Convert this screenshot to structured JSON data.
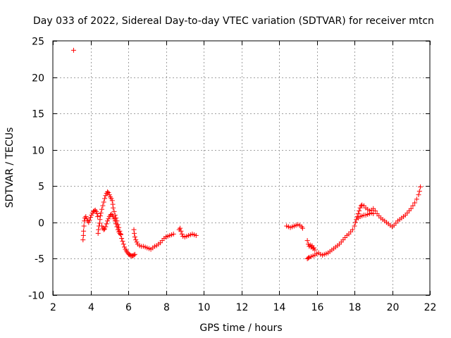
{
  "chart_data": {
    "type": "scatter",
    "title": "Day 033 of 2022, Sidereal Day-to-day VTEC variation (SDTVAR) for receiver mtcn",
    "xlabel": "GPS time / hours",
    "ylabel": "SDTVAR / TECUs",
    "xlim": [
      2,
      22
    ],
    "ylim": [
      -10,
      25
    ],
    "xticks": [
      2,
      4,
      6,
      8,
      10,
      12,
      14,
      16,
      18,
      20,
      22
    ],
    "yticks": [
      -10,
      -5,
      0,
      5,
      10,
      15,
      20,
      25
    ],
    "grid": true,
    "marker": "+",
    "color": "#ff0000",
    "series": [
      {
        "name": "SDTVAR",
        "points": [
          [
            3.1,
            23.7
          ],
          [
            3.6,
            -2.4
          ],
          [
            3.62,
            -1.8
          ],
          [
            3.63,
            -1.2
          ],
          [
            3.65,
            -0.5
          ],
          [
            3.67,
            0.2
          ],
          [
            3.7,
            0.6
          ],
          [
            3.75,
            0.8
          ],
          [
            3.8,
            0.5
          ],
          [
            3.85,
            0.2
          ],
          [
            3.9,
            0.0
          ],
          [
            3.95,
            0.3
          ],
          [
            4.0,
            0.7
          ],
          [
            4.05,
            1.0
          ],
          [
            4.1,
            1.3
          ],
          [
            4.15,
            1.5
          ],
          [
            4.2,
            1.6
          ],
          [
            4.25,
            1.7
          ],
          [
            4.3,
            1.5
          ],
          [
            4.35,
            1.2
          ],
          [
            4.38,
            0.8
          ],
          [
            4.4,
            -1.5
          ],
          [
            4.42,
            -1.0
          ],
          [
            4.45,
            -0.5
          ],
          [
            4.48,
            -0.1
          ],
          [
            4.5,
            0.4
          ],
          [
            4.52,
            0.9
          ],
          [
            4.55,
            1.3
          ],
          [
            4.6,
            1.8
          ],
          [
            4.65,
            2.3
          ],
          [
            4.7,
            2.8
          ],
          [
            4.75,
            3.3
          ],
          [
            4.8,
            3.7
          ],
          [
            4.85,
            4.0
          ],
          [
            4.9,
            4.2
          ],
          [
            4.95,
            4.1
          ],
          [
            5.0,
            3.8
          ],
          [
            5.05,
            3.5
          ],
          [
            5.1,
            3.3
          ],
          [
            5.15,
            3.0
          ],
          [
            5.18,
            2.5
          ],
          [
            5.2,
            2.0
          ],
          [
            5.25,
            1.5
          ],
          [
            5.3,
            1.0
          ],
          [
            5.35,
            0.6
          ],
          [
            5.4,
            0.2
          ],
          [
            5.45,
            -0.3
          ],
          [
            5.5,
            -0.7
          ],
          [
            5.55,
            -1.2
          ],
          [
            5.6,
            -1.7
          ],
          [
            5.65,
            -2.2
          ],
          [
            5.7,
            -2.6
          ],
          [
            5.75,
            -3.0
          ],
          [
            5.8,
            -3.4
          ],
          [
            5.85,
            -3.7
          ],
          [
            5.9,
            -3.9
          ],
          [
            5.95,
            -4.1
          ],
          [
            6.0,
            -4.3
          ],
          [
            6.05,
            -4.4
          ],
          [
            6.1,
            -4.5
          ],
          [
            6.15,
            -4.6
          ],
          [
            6.2,
            -4.6
          ],
          [
            6.25,
            -4.6
          ],
          [
            6.3,
            -4.5
          ],
          [
            6.35,
            -4.4
          ],
          [
            4.6,
            -0.5
          ],
          [
            4.65,
            -0.8
          ],
          [
            4.7,
            -1.0
          ],
          [
            4.75,
            -0.9
          ],
          [
            4.8,
            -0.6
          ],
          [
            4.85,
            -0.2
          ],
          [
            4.9,
            0.2
          ],
          [
            4.95,
            0.5
          ],
          [
            5.0,
            0.8
          ],
          [
            5.05,
            1.0
          ],
          [
            5.1,
            1.1
          ],
          [
            5.15,
            1.0
          ],
          [
            5.2,
            0.8
          ],
          [
            5.25,
            0.5
          ],
          [
            5.3,
            0.2
          ],
          [
            5.35,
            -0.2
          ],
          [
            5.4,
            -0.6
          ],
          [
            5.45,
            -1.0
          ],
          [
            5.5,
            -1.3
          ],
          [
            5.55,
            -1.5
          ],
          [
            5.6,
            -1.6
          ],
          [
            6.3,
            -1.0
          ],
          [
            6.32,
            -1.5
          ],
          [
            6.35,
            -2.0
          ],
          [
            6.4,
            -2.4
          ],
          [
            6.45,
            -2.7
          ],
          [
            6.5,
            -3.0
          ],
          [
            6.6,
            -3.2
          ],
          [
            6.7,
            -3.3
          ],
          [
            6.8,
            -3.3
          ],
          [
            6.9,
            -3.4
          ],
          [
            7.0,
            -3.5
          ],
          [
            7.1,
            -3.6
          ],
          [
            7.2,
            -3.7
          ],
          [
            7.3,
            -3.5
          ],
          [
            7.4,
            -3.3
          ],
          [
            7.5,
            -3.2
          ],
          [
            7.6,
            -3.0
          ],
          [
            7.7,
            -2.8
          ],
          [
            7.8,
            -2.5
          ],
          [
            7.9,
            -2.2
          ],
          [
            8.0,
            -2.0
          ],
          [
            8.1,
            -1.9
          ],
          [
            8.2,
            -1.8
          ],
          [
            8.3,
            -1.7
          ],
          [
            8.4,
            -1.6
          ],
          [
            8.7,
            -1.0
          ],
          [
            8.75,
            -0.8
          ],
          [
            8.8,
            -1.2
          ],
          [
            8.85,
            -1.6
          ],
          [
            8.9,
            -1.9
          ],
          [
            9.0,
            -2.0
          ],
          [
            9.1,
            -1.9
          ],
          [
            9.2,
            -1.8
          ],
          [
            9.3,
            -1.7
          ],
          [
            9.4,
            -1.6
          ],
          [
            9.5,
            -1.7
          ],
          [
            9.6,
            -1.8
          ],
          [
            14.4,
            -0.5
          ],
          [
            14.5,
            -0.6
          ],
          [
            14.6,
            -0.7
          ],
          [
            14.7,
            -0.6
          ],
          [
            14.8,
            -0.5
          ],
          [
            14.9,
            -0.4
          ],
          [
            15.0,
            -0.3
          ],
          [
            15.1,
            -0.4
          ],
          [
            15.2,
            -0.6
          ],
          [
            15.25,
            -0.8
          ],
          [
            15.5,
            -2.5
          ],
          [
            15.55,
            -3.0
          ],
          [
            15.6,
            -3.3
          ],
          [
            15.65,
            -3.1
          ],
          [
            15.7,
            -3.4
          ],
          [
            15.75,
            -3.2
          ],
          [
            15.8,
            -3.6
          ],
          [
            15.85,
            -3.5
          ],
          [
            15.9,
            -3.8
          ],
          [
            15.5,
            -5.0
          ],
          [
            15.55,
            -4.9
          ],
          [
            15.6,
            -4.8
          ],
          [
            15.7,
            -4.7
          ],
          [
            15.8,
            -4.6
          ],
          [
            15.9,
            -4.5
          ],
          [
            16.0,
            -4.3
          ],
          [
            16.1,
            -4.2
          ],
          [
            16.2,
            -4.4
          ],
          [
            16.3,
            -4.5
          ],
          [
            16.4,
            -4.4
          ],
          [
            16.5,
            -4.3
          ],
          [
            16.6,
            -4.2
          ],
          [
            16.7,
            -4.0
          ],
          [
            16.8,
            -3.8
          ],
          [
            16.9,
            -3.6
          ],
          [
            17.0,
            -3.4
          ],
          [
            17.1,
            -3.2
          ],
          [
            17.2,
            -3.0
          ],
          [
            17.3,
            -2.7
          ],
          [
            17.4,
            -2.4
          ],
          [
            17.5,
            -2.1
          ],
          [
            17.6,
            -1.8
          ],
          [
            17.7,
            -1.6
          ],
          [
            17.8,
            -1.3
          ],
          [
            17.9,
            -1.0
          ],
          [
            18.0,
            -0.5
          ],
          [
            18.05,
            0.0
          ],
          [
            18.1,
            0.4
          ],
          [
            18.15,
            0.8
          ],
          [
            18.2,
            1.2
          ],
          [
            18.25,
            1.6
          ],
          [
            18.3,
            2.0
          ],
          [
            18.35,
            2.3
          ],
          [
            18.4,
            2.4
          ],
          [
            18.5,
            2.3
          ],
          [
            18.6,
            2.0
          ],
          [
            18.7,
            1.8
          ],
          [
            18.8,
            1.6
          ],
          [
            18.9,
            1.7
          ],
          [
            19.0,
            1.9
          ],
          [
            19.1,
            1.6
          ],
          [
            19.2,
            1.2
          ],
          [
            19.3,
            0.9
          ],
          [
            19.4,
            0.6
          ],
          [
            19.5,
            0.4
          ],
          [
            19.6,
            0.2
          ],
          [
            19.7,
            0.0
          ],
          [
            19.8,
            -0.2
          ],
          [
            19.9,
            -0.4
          ],
          [
            20.0,
            -0.6
          ],
          [
            20.1,
            -0.4
          ],
          [
            20.2,
            -0.1
          ],
          [
            20.3,
            0.2
          ],
          [
            20.4,
            0.4
          ],
          [
            20.5,
            0.6
          ],
          [
            20.6,
            0.8
          ],
          [
            20.7,
            1.0
          ],
          [
            20.8,
            1.3
          ],
          [
            20.9,
            1.6
          ],
          [
            21.0,
            1.9
          ],
          [
            21.1,
            2.3
          ],
          [
            21.2,
            2.7
          ],
          [
            21.3,
            3.2
          ],
          [
            21.4,
            3.8
          ],
          [
            21.45,
            4.3
          ],
          [
            21.5,
            4.9
          ],
          [
            18.2,
            0.6
          ],
          [
            18.3,
            0.8
          ],
          [
            18.4,
            0.9
          ],
          [
            18.5,
            1.0
          ],
          [
            18.6,
            1.0
          ],
          [
            18.7,
            1.1
          ],
          [
            18.8,
            1.2
          ],
          [
            18.9,
            1.3
          ],
          [
            19.0,
            1.2
          ]
        ]
      }
    ]
  }
}
